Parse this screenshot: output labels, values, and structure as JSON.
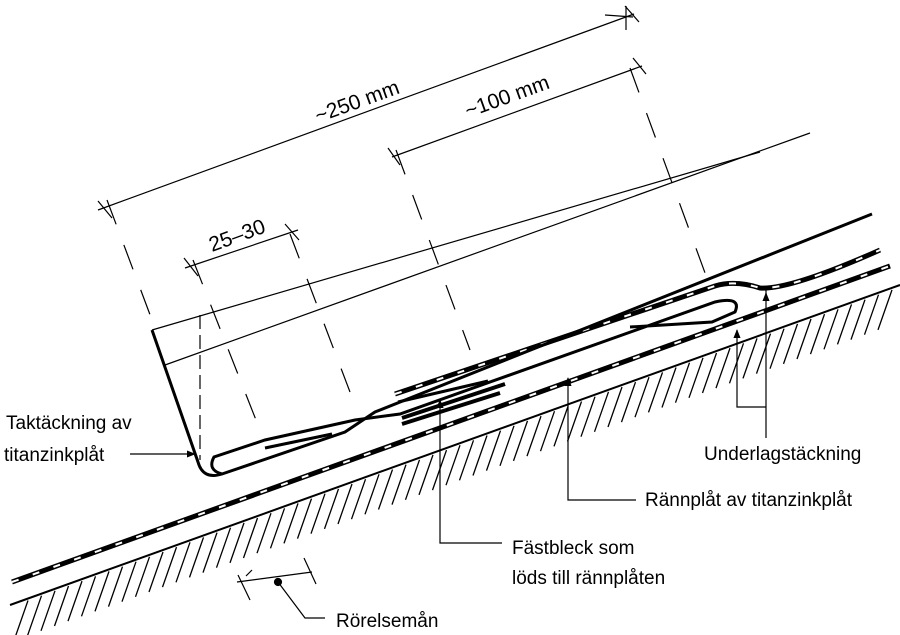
{
  "dimensions": {
    "overall": "~250 mm",
    "overlap": "~100 mm",
    "fold": "25–30"
  },
  "labels": {
    "roofing_line1": "Taktäckning av",
    "roofing_line2": "titanzinkplåt",
    "underlay": "Underlagstäckning",
    "gutter_plate": "Rännplåt av titanzinkplåt",
    "clip_line1": "Fästbleck som",
    "clip_line2": "löds till rännplåten",
    "movement": "Rörelsemån"
  },
  "colors": {
    "line": "#000000",
    "background": "#ffffff"
  }
}
